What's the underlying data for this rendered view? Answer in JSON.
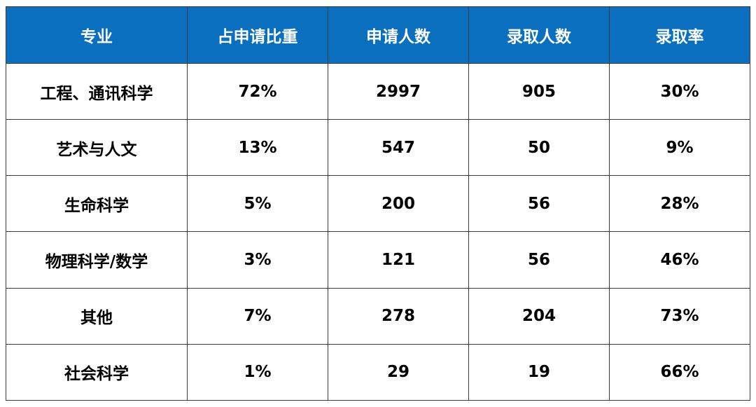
{
  "table": {
    "headers": [
      "专业",
      "占申请比重",
      "申请人数",
      "录取人数",
      "录取率"
    ],
    "rows": [
      [
        "工程、通讯科学",
        "72%",
        "2997",
        "905",
        "30%"
      ],
      [
        "艺术与人文",
        "13%",
        "547",
        "50",
        "9%"
      ],
      [
        "生命科学",
        "5%",
        "200",
        "56",
        "28%"
      ],
      [
        "物理科学/数学",
        "3%",
        "121",
        "56",
        "46%"
      ],
      [
        "其他",
        "7%",
        "278",
        "204",
        "73%"
      ],
      [
        "社会科学",
        "1%",
        "29",
        "19",
        "66%"
      ]
    ]
  },
  "colors": {
    "header_bg": "#0b6fc0",
    "header_text": "#ffffff",
    "cell_text": "#000000",
    "border": "#3a3a3a"
  }
}
